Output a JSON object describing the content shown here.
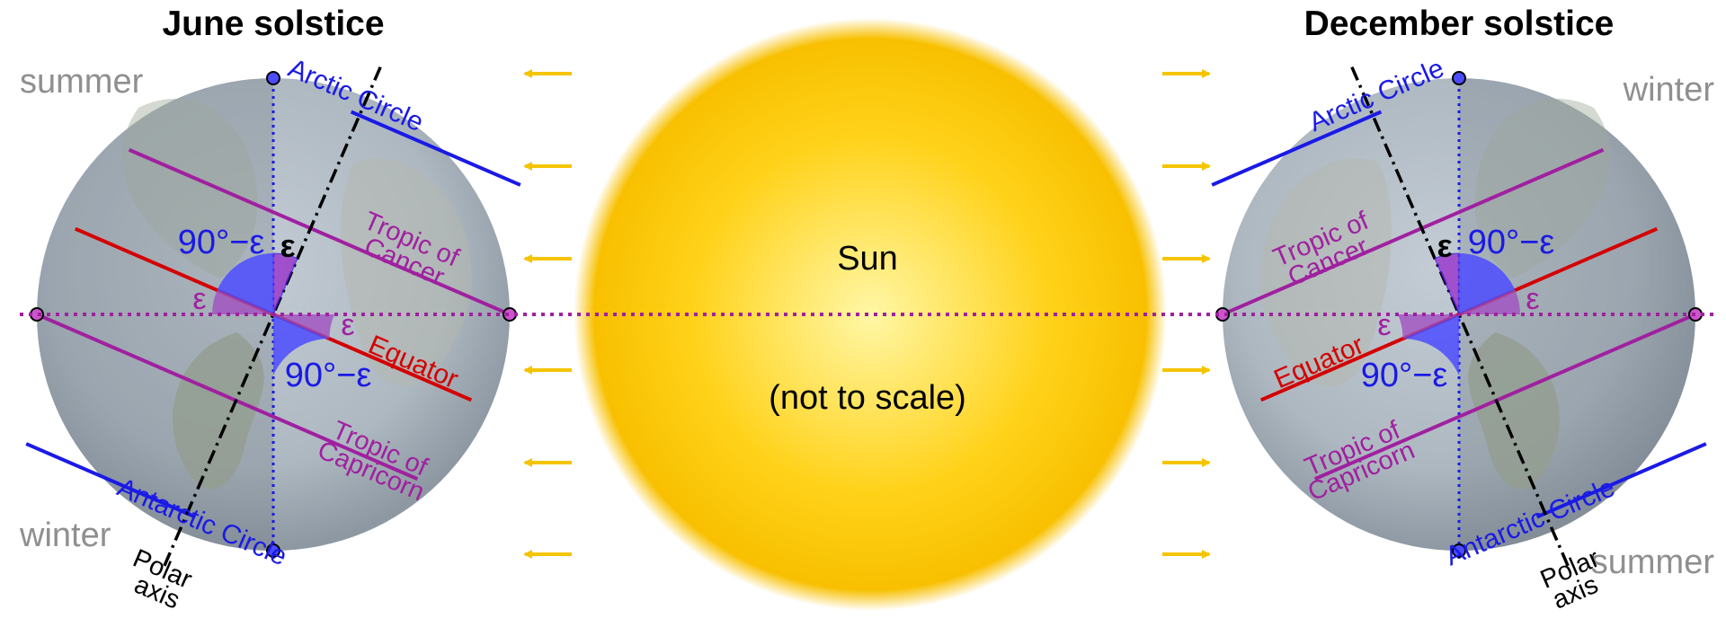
{
  "titles": {
    "june": "June solstice",
    "december": "December solstice"
  },
  "seasons": {
    "summer": "summer",
    "winter": "winter"
  },
  "labels": {
    "arctic": "Arctic Circle",
    "antarctic": "Antarctic Circle",
    "tropic_cancer_1": "Tropic of",
    "tropic_cancer_2": "Cancer",
    "tropic_capricorn_1": "Tropic of",
    "tropic_capricorn_2": "Capricorn",
    "equator": "Equator",
    "angle_comp": "90°−ε",
    "epsilon": "ε",
    "polar_1": "Polar",
    "polar_2": "axis"
  },
  "sun": {
    "label": "Sun",
    "note": "(not to scale)"
  },
  "colors": {
    "arctic": "#1a1ae6",
    "tropic": "#a020a0",
    "equator": "#d40000",
    "arrow": "#f5c400",
    "season": "#8f8f8f",
    "sun_center": "#fff6a0",
    "sun_edge": "#f7bf00"
  }
}
